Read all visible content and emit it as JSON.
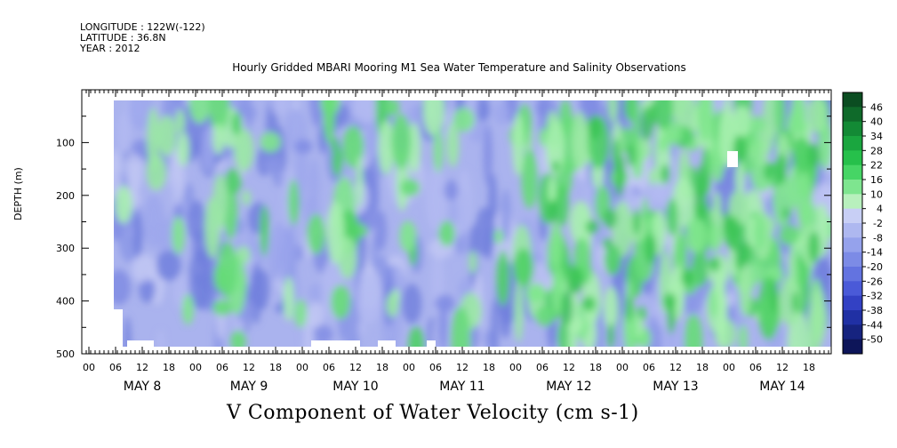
{
  "meta": {
    "longitude": "LONGITUDE : 122W(-122)",
    "latitude": "LATITUDE : 36.8N",
    "year": "YEAR : 2012"
  },
  "title": "Hourly Gridded MBARI Mooring M1 Sea Water Temperature and Salinity Observations",
  "caption": "V Component of Water Velocity (cm s-1)",
  "chart_data": {
    "type": "heatmap",
    "title": "Hourly Gridded MBARI Mooring M1 Sea Water Temperature and Salinity Observations",
    "xlabel": "",
    "ylabel": "DEPTH (m)",
    "y_reversed": true,
    "ylim": [
      0,
      500
    ],
    "y_ticks": [
      100,
      200,
      300,
      400,
      500
    ],
    "x_range_hours": [
      0,
      168
    ],
    "x_hour_ticks": [
      "00",
      "06",
      "12",
      "18",
      "00",
      "06",
      "12",
      "18",
      "00",
      "06",
      "12",
      "18",
      "00",
      "06",
      "12",
      "18",
      "00",
      "06",
      "12",
      "18",
      "00",
      "06",
      "12",
      "18",
      "00",
      "06",
      "12",
      "18"
    ],
    "x_day_labels": [
      "MAY  8",
      "MAY  9",
      "MAY 10",
      "MAY 11",
      "MAY 12",
      "MAY 13",
      "MAY 14"
    ],
    "colorbar": {
      "labels": [
        "46",
        "40",
        "34",
        "28",
        "22",
        "16",
        "10",
        "4",
        "-2",
        "-8",
        "-14",
        "-20",
        "-26",
        "-32",
        "-38",
        "-44",
        "-50"
      ],
      "range": [
        -50,
        52
      ],
      "colors": [
        "#0b4d21",
        "#0f6a2a",
        "#138a35",
        "#1aa63f",
        "#26c04b",
        "#46d565",
        "#7ee58f",
        "#b8f0bd",
        "#c8cff5",
        "#aeb8f0",
        "#95a2ec",
        "#7c8be6",
        "#6373e0",
        "#4a5ad8",
        "#3341c4",
        "#2030a4",
        "#16237f",
        "#0d1559"
      ]
    },
    "series": [
      {
        "name": "",
        "depth_bands": [
          20,
          490
        ],
        "pattern": "Mostly weak negative (blue/lavender, -2 to -20) May 8-11 with scattered green patches; strong positive (green, 4 to 28) vertical streaks May 12-14"
      }
    ]
  }
}
